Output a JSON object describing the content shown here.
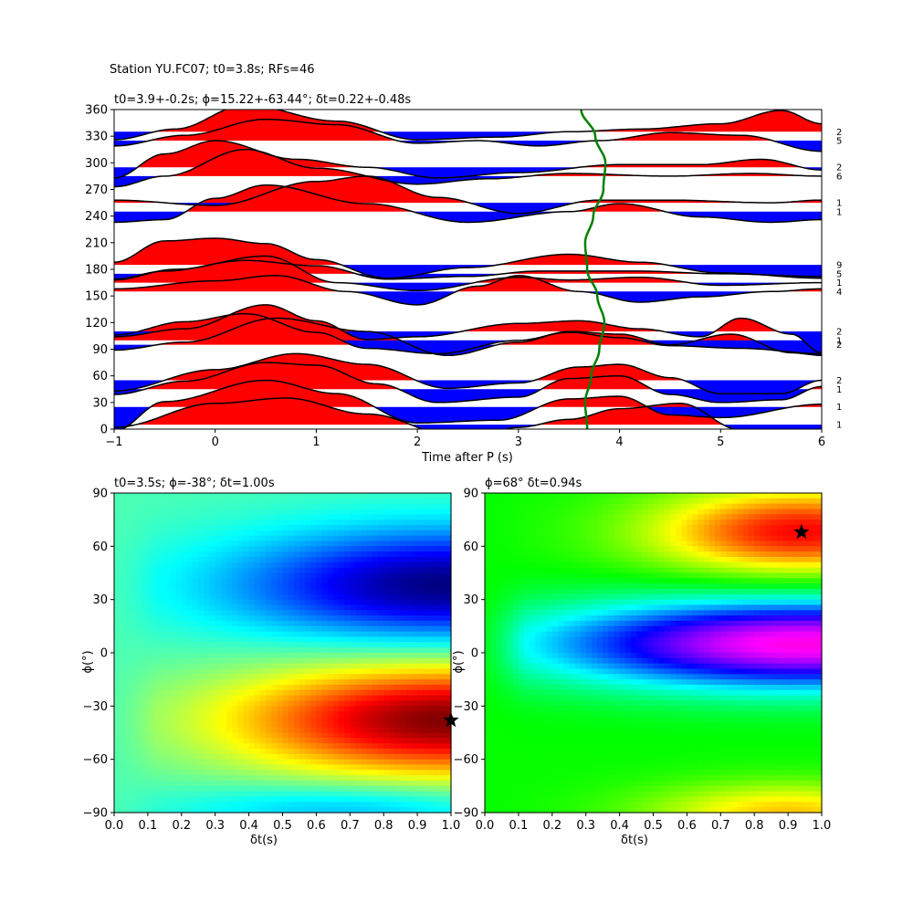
{
  "figure_title": "Station YU.FC07; t0=3.8s; RFs=46",
  "chart_data": [
    {
      "type": "line",
      "panel": "receiver-function-traces",
      "title": "t0=3.9+-0.2s; ϕ=15.22+-63.44°; δt=0.22+-0.48s",
      "xlabel": "Time after P (s)",
      "ylabel": "",
      "xlim": [
        -1,
        6
      ],
      "ylim": [
        0,
        360
      ],
      "xticks": [
        "−1",
        "0",
        "1",
        "2",
        "3",
        "4",
        "5",
        "6"
      ],
      "yticks": [
        "0",
        "30",
        "60",
        "90",
        "120",
        "150",
        "180",
        "210",
        "240",
        "270",
        "300",
        "330",
        "360"
      ],
      "fill_positive_color": "#ff0000",
      "fill_negative_color": "#0000ff",
      "trace_color": "#000000",
      "moveout_curve_color": "#008000",
      "moveout_curve": {
        "y": [
          0,
          30,
          60,
          90,
          120,
          150,
          180,
          210,
          240,
          270,
          300,
          330,
          360
        ],
        "x": [
          3.68,
          3.66,
          3.72,
          3.8,
          3.85,
          3.78,
          3.68,
          3.66,
          3.74,
          3.84,
          3.86,
          3.76,
          3.62
        ]
      },
      "traces": [
        {
          "baz": 5,
          "count": "1",
          "x": [
            -1,
            0,
            0.7,
            1.5,
            2.5,
            3,
            3.5,
            4,
            4.6,
            5.2,
            6
          ],
          "amp": [
            -0.1,
            0.8,
            1.0,
            0.4,
            -0.6,
            -0.1,
            0.2,
            0.6,
            0.8,
            -0.2,
            -0.9
          ]
        },
        {
          "baz": 25,
          "count": "1",
          "x": [
            -1,
            -0.5,
            0.5,
            1.2,
            2,
            2.8,
            3.5,
            4,
            4.5,
            5,
            6
          ],
          "amp": [
            -0.9,
            0.2,
            1.0,
            0.5,
            -0.6,
            -0.5,
            0.3,
            0.4,
            -0.3,
            -0.4,
            0.1
          ]
        },
        {
          "baz": 45,
          "count": "1",
          "x": [
            -1,
            -0.3,
            0.5,
            1,
            1.6,
            2.2,
            3,
            3.5,
            4,
            4.5,
            5,
            5.6,
            6
          ],
          "amp": [
            -0.2,
            0.3,
            1.0,
            0.9,
            0.2,
            -0.5,
            -0.3,
            0.4,
            0.5,
            -0.2,
            -0.5,
            -0.4,
            0.1
          ]
        },
        {
          "baz": 55,
          "count": "2",
          "x": [
            -1,
            0,
            0.8,
            1.5,
            2.3,
            3,
            3.6,
            4,
            4.5,
            5,
            5.6,
            6
          ],
          "amp": [
            -0.4,
            0.4,
            1.0,
            0.6,
            -0.3,
            -0.1,
            0.5,
            0.6,
            0.1,
            -0.5,
            -0.5,
            0.0
          ]
        },
        {
          "baz": 95,
          "count": "2",
          "x": [
            -1,
            -0.3,
            0.6,
            1.5,
            2.3,
            3,
            3.5,
            4,
            4.5,
            5.1,
            5.7,
            6
          ],
          "amp": [
            -0.2,
            0.1,
            1.0,
            0.5,
            -0.4,
            0.1,
            0.5,
            0.4,
            0.0,
            0.4,
            -0.3,
            -0.4
          ]
        },
        {
          "baz": 100,
          "count": "1",
          "x": [
            -1,
            -0.3,
            0.3,
            1,
            1.5,
            2.2,
            3,
            3.5,
            4,
            4.5,
            5.2,
            6
          ],
          "amp": [
            0.2,
            0.7,
            1.0,
            0.3,
            -0.3,
            -0.5,
            0.0,
            0.3,
            0.1,
            -0.2,
            -0.3,
            -0.5
          ]
        },
        {
          "baz": 110,
          "count": "2",
          "x": [
            -1,
            -0.3,
            0.5,
            1,
            1.5,
            2,
            3,
            3.6,
            4.2,
            4.8,
            5.2,
            5.7,
            6
          ],
          "amp": [
            -0.2,
            0.1,
            1.0,
            0.4,
            -0.3,
            -0.2,
            0.3,
            0.4,
            0.1,
            -0.2,
            0.5,
            -0.1,
            -0.8
          ]
        },
        {
          "baz": 155,
          "count": "4",
          "x": [
            -1,
            0,
            0.6,
            1.3,
            2,
            2.6,
            3,
            3.6,
            4.2,
            4.8,
            5.5,
            6
          ],
          "amp": [
            0.1,
            0.4,
            0.6,
            0.0,
            -0.5,
            0.2,
            0.6,
            0.0,
            -0.4,
            -0.2,
            0.0,
            0.1
          ]
        },
        {
          "baz": 165,
          "count": "1",
          "x": [
            -1,
            -0.4,
            0.5,
            1.2,
            2,
            3,
            3.5,
            4.2,
            5,
            6
          ],
          "amp": [
            0.1,
            0.5,
            1.0,
            0.0,
            -0.3,
            0.2,
            0.1,
            0.2,
            -0.1,
            0.0
          ]
        },
        {
          "baz": 175,
          "count": "5",
          "x": [
            -1,
            -0.5,
            0.3,
            1,
            1.7,
            2.5,
            3.2,
            4.2,
            5,
            6
          ],
          "amp": [
            -0.2,
            0.1,
            0.5,
            0.3,
            -0.2,
            -0.1,
            0.1,
            0.1,
            0.0,
            -0.1
          ]
        },
        {
          "baz": 185,
          "count": "9",
          "x": [
            -1,
            -0.5,
            0,
            0.5,
            1,
            1.7,
            2.5,
            3.5,
            4.2,
            5,
            6
          ],
          "amp": [
            0.1,
            0.9,
            1.0,
            0.8,
            0.2,
            -0.5,
            -0.1,
            0.4,
            0.1,
            -0.3,
            -0.5
          ]
        },
        {
          "baz": 245,
          "count": "1",
          "x": [
            -1,
            -0.5,
            0,
            0.5,
            1.5,
            2.5,
            3.5,
            4,
            4.8,
            5.5,
            6
          ],
          "amp": [
            -0.4,
            -0.3,
            0.5,
            1.0,
            0.3,
            -0.4,
            0.0,
            0.3,
            -0.2,
            -0.4,
            -0.3
          ]
        },
        {
          "baz": 255,
          "count": "1",
          "x": [
            -1,
            0,
            1,
            1.5,
            2.2,
            3,
            3.8,
            4.5,
            5.5,
            6
          ],
          "amp": [
            0.1,
            -0.1,
            0.8,
            1.0,
            0.2,
            -0.4,
            0.1,
            0.1,
            0.0,
            0.1
          ]
        },
        {
          "baz": 285,
          "count": "6",
          "x": [
            -1,
            -0.5,
            0.3,
            1,
            2,
            2.7,
            3.5,
            4.5,
            5.3,
            6
          ],
          "amp": [
            -0.4,
            0.0,
            1.0,
            0.3,
            -0.3,
            -0.1,
            0.1,
            0.0,
            0.1,
            0.0
          ]
        },
        {
          "baz": 295,
          "count": "2",
          "x": [
            -1,
            -0.5,
            0,
            0.8,
            1.5,
            2.2,
            3,
            4,
            4.8,
            5.4,
            6
          ],
          "amp": [
            -0.4,
            0.5,
            1.0,
            0.3,
            0.0,
            -0.4,
            -0.2,
            0.1,
            0.1,
            0.3,
            -0.1
          ]
        },
        {
          "baz": 325,
          "count": "5",
          "x": [
            -1,
            -0.3,
            0.5,
            1.2,
            2,
            2.6,
            3.2,
            3.8,
            4.5,
            5.2,
            6
          ],
          "amp": [
            -0.2,
            0.2,
            0.8,
            0.6,
            -0.1,
            0.0,
            -0.2,
            0.0,
            0.3,
            0.2,
            -0.4
          ]
        },
        {
          "baz": 335,
          "count": "2",
          "x": [
            -1,
            -0.4,
            0.3,
            1.2,
            2,
            2.8,
            3.5,
            4.2,
            5,
            5.6,
            6
          ],
          "amp": [
            -0.3,
            0.1,
            1.0,
            0.4,
            -0.3,
            -0.2,
            0.0,
            0.1,
            0.3,
            0.8,
            0.3
          ]
        }
      ]
    },
    {
      "type": "heatmap",
      "panel": "grid-search-left",
      "title": "t0=3.5s; ϕ=-38°; δt=1.00s",
      "xlabel": "δt(s)",
      "ylabel": "ϕ(°)",
      "xlim": [
        0.0,
        1.0
      ],
      "ylim": [
        -90,
        90
      ],
      "xticks": [
        "0.0",
        "0.1",
        "0.2",
        "0.3",
        "0.4",
        "0.5",
        "0.6",
        "0.7",
        "0.8",
        "0.9",
        "1.0"
      ],
      "yticks": [
        "−90",
        "−60",
        "−30",
        "0",
        "30",
        "60",
        "90"
      ],
      "colormap": "jet",
      "best_fit": {
        "dt": 1.0,
        "phi": -38
      },
      "field": {
        "neutral": 0.45,
        "blobs": [
          {
            "dt": 1.0,
            "phi": -38,
            "peak": 0.55,
            "sdt": 0.45,
            "sphi": 22
          },
          {
            "dt": 1.0,
            "phi": 38,
            "peak": -0.45,
            "sdt": 0.45,
            "sphi": 22
          },
          {
            "dt": 0.7,
            "phi": -88,
            "peak": -0.15,
            "sdt": 0.35,
            "sphi": 10
          }
        ]
      }
    },
    {
      "type": "heatmap",
      "panel": "grid-search-right",
      "title": "ϕ=68° δt=0.94s",
      "xlabel": "δt(s)",
      "ylabel": "ϕ(°)",
      "xlim": [
        0.0,
        1.0
      ],
      "ylim": [
        -90,
        90
      ],
      "xticks": [
        "0.0",
        "0.1",
        "0.2",
        "0.3",
        "0.4",
        "0.5",
        "0.6",
        "0.7",
        "0.8",
        "0.9",
        "1.0"
      ],
      "yticks": [
        "−90",
        "−60",
        "−30",
        "0",
        "30",
        "60",
        "90"
      ],
      "colormap": "hsv",
      "best_fit": {
        "dt": 0.94,
        "phi": 68
      },
      "field": {
        "neutral": 0.33,
        "blobs": [
          {
            "dt": 0.94,
            "phi": 68,
            "peak": -0.33,
            "sdt": 0.32,
            "sphi": 18
          },
          {
            "dt": 0.95,
            "phi": 5,
            "peak": 0.52,
            "sdt": 0.55,
            "sphi": 18
          },
          {
            "dt": 0.9,
            "phi": -90,
            "peak": -0.2,
            "sdt": 0.3,
            "sphi": 12
          }
        ]
      }
    }
  ]
}
